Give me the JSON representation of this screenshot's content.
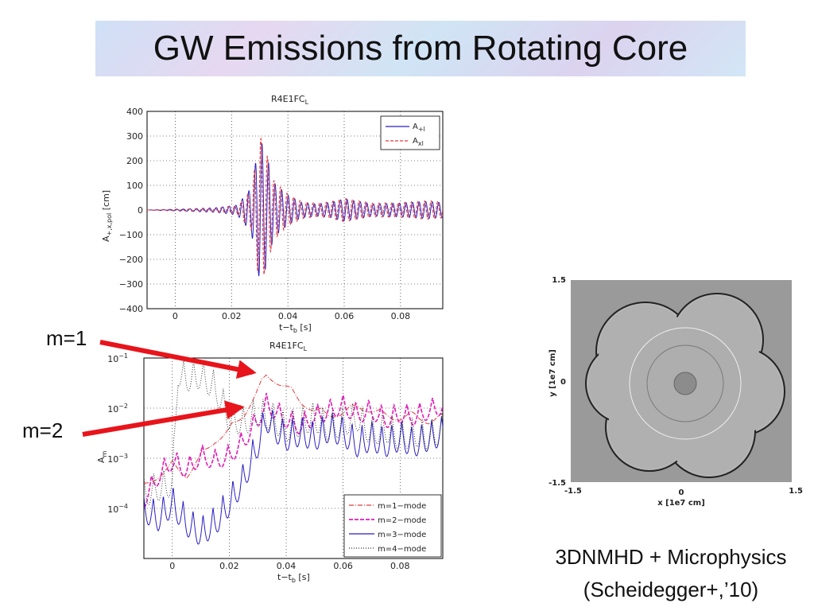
{
  "slide": {
    "title": "GW Emissions from Rotating Core",
    "caption_line1": "3DNMHD + Microphysics",
    "caption_line2": "(Scheidegger+,’10)",
    "label_m1": "m=1",
    "label_m2": "m=2"
  },
  "colors": {
    "arrow": "#e8141b",
    "blue": "#2b1fc2",
    "red": "#e5393f",
    "magenta": "#e01bb6",
    "dotted": "#333333"
  },
  "chart_data": [
    {
      "type": "line",
      "title": "R4E1FC",
      "title_sub": "L",
      "xlabel": "t−t",
      "xlabel_sub": "b",
      "xlabel_unit": " [s]",
      "ylabel": "A",
      "ylabel_sub": "+,x,pol",
      "ylabel_unit": " [cm]",
      "xlim": [
        -0.01,
        0.095
      ],
      "ylim": [
        -400,
        400
      ],
      "x_ticks": [
        "0",
        "0.02",
        "0.04",
        "0.06",
        "0.08"
      ],
      "y_ticks": [
        "400",
        "300",
        "200",
        "100",
        "0",
        "−100",
        "−200",
        "−300",
        "−400"
      ],
      "grid": true,
      "legend_position": "top-right",
      "series": [
        {
          "name": "A",
          "name_sub": "+l",
          "color": "#2b1fc2",
          "style": "solid",
          "envelope": {
            "x": [
              -0.01,
              0.005,
              0.015,
              0.022,
              0.027,
              0.03,
              0.032,
              0.035,
              0.04,
              0.045,
              0.05,
              0.055,
              0.06,
              0.065,
              0.07,
              0.08,
              0.09,
              0.095
            ],
            "y": [
              0,
              5,
              10,
              20,
              90,
              290,
              240,
              110,
              60,
              30,
              25,
              30,
              45,
              35,
              25,
              28,
              35,
              30
            ]
          }
        },
        {
          "name": "A",
          "name_sub": "xl",
          "color": "#e5393f",
          "style": "dashed",
          "envelope": {
            "x": [
              -0.01,
              0.005,
              0.015,
              0.022,
              0.027,
              0.03,
              0.032,
              0.035,
              0.04,
              0.045,
              0.05,
              0.055,
              0.06,
              0.065,
              0.07,
              0.08,
              0.09,
              0.095
            ],
            "y": [
              0,
              4,
              8,
              18,
              80,
              300,
              250,
              120,
              65,
              35,
              28,
              33,
              48,
              38,
              28,
              30,
              38,
              32
            ]
          }
        }
      ]
    },
    {
      "type": "line",
      "title": "R4E1FC",
      "title_sub": "L",
      "xlabel": "t−t",
      "xlabel_sub": "b",
      "xlabel_unit": " [s]",
      "ylabel": "A",
      "ylabel_sub": "m",
      "yscale": "log",
      "xlim": [
        -0.01,
        0.095
      ],
      "ylim": [
        1e-05,
        0.1
      ],
      "x_ticks": [
        "0",
        "0.02",
        "0.04",
        "0.06",
        "0.08"
      ],
      "y_ticks": [
        {
          "base": "10",
          "exp": "−1"
        },
        {
          "base": "10",
          "exp": "−2"
        },
        {
          "base": "10",
          "exp": "−3"
        },
        {
          "base": "10",
          "exp": "−4"
        }
      ],
      "grid": true,
      "legend_position": "bottom-right",
      "series": [
        {
          "name": "m=1−mode",
          "color": "#e5393f",
          "style": "dashdot",
          "x": [
            -0.01,
            -0.005,
            0.0,
            0.005,
            0.01,
            0.015,
            0.02,
            0.025,
            0.03,
            0.033,
            0.036,
            0.04,
            0.045,
            0.05,
            0.055,
            0.06,
            0.065,
            0.07,
            0.075,
            0.08,
            0.085,
            0.09,
            0.095
          ],
          "y": [
            0.0003,
            0.0005,
            0.0008,
            0.0005,
            0.0012,
            0.0025,
            0.004,
            0.008,
            0.025,
            0.048,
            0.04,
            0.03,
            0.015,
            0.01,
            0.008,
            0.009,
            0.012,
            0.01,
            0.008,
            0.007,
            0.008,
            0.006,
            0.007
          ]
        },
        {
          "name": "m=2−mode",
          "color": "#e01bb6",
          "style": "dashed",
          "x": [
            -0.01,
            -0.005,
            0.0,
            0.005,
            0.01,
            0.015,
            0.02,
            0.025,
            0.03,
            0.033,
            0.036,
            0.04,
            0.045,
            0.05,
            0.055,
            0.06,
            0.065,
            0.07,
            0.075,
            0.08,
            0.085,
            0.09,
            0.095
          ],
          "y": [
            0.0002,
            0.0006,
            0.0012,
            0.0008,
            0.0015,
            0.0012,
            0.0015,
            0.003,
            0.008,
            0.016,
            0.012,
            0.008,
            0.006,
            0.009,
            0.012,
            0.015,
            0.01,
            0.012,
            0.008,
            0.01,
            0.009,
            0.012,
            0.015
          ]
        },
        {
          "name": "m=3−mode",
          "color": "#2b1fc2",
          "style": "solid",
          "x": [
            -0.01,
            -0.005,
            0.0,
            0.005,
            0.01,
            0.015,
            0.02,
            0.025,
            0.03,
            0.033,
            0.036,
            0.04,
            0.045,
            0.05,
            0.055,
            0.06,
            0.065,
            0.07,
            0.075,
            0.08,
            0.085,
            0.09,
            0.095
          ],
          "y": [
            0.00015,
            0.0001,
            0.0002,
            8e-05,
            5e-05,
            8e-05,
            0.0002,
            0.0006,
            0.003,
            0.01,
            0.006,
            0.004,
            0.005,
            0.004,
            0.006,
            0.005,
            0.003,
            0.004,
            0.003,
            0.004,
            0.003,
            0.004,
            0.005
          ]
        },
        {
          "name": "m=4−mode",
          "color": "#333333",
          "style": "dotted",
          "x": [
            -0.01,
            -0.005,
            0.0,
            0.002,
            0.005,
            0.01,
            0.015,
            0.02,
            0.025,
            0.03,
            0.035,
            0.04,
            0.045,
            0.05,
            0.055,
            0.06,
            0.065,
            0.07,
            0.075,
            0.08,
            0.085,
            0.09,
            0.095
          ],
          "y": [
            0.0003,
            0.0004,
            0.0005,
            0.08,
            0.06,
            0.07,
            0.04,
            0.01,
            0.008,
            0.012,
            0.01,
            0.006,
            0.008,
            0.01,
            0.006,
            0.008,
            0.01,
            0.005,
            0.006,
            0.004,
            0.005,
            0.004,
            0.006
          ]
        }
      ]
    }
  ],
  "image": {
    "alt": "3D MHD simulation slice",
    "xlabel": "x [1e7 cm]",
    "ylabel": "y [1e7 cm]",
    "x_ticks": [
      "-1.5",
      "0",
      "1.5"
    ],
    "y_ticks": [
      "1.5",
      "0",
      "-1.5"
    ]
  }
}
